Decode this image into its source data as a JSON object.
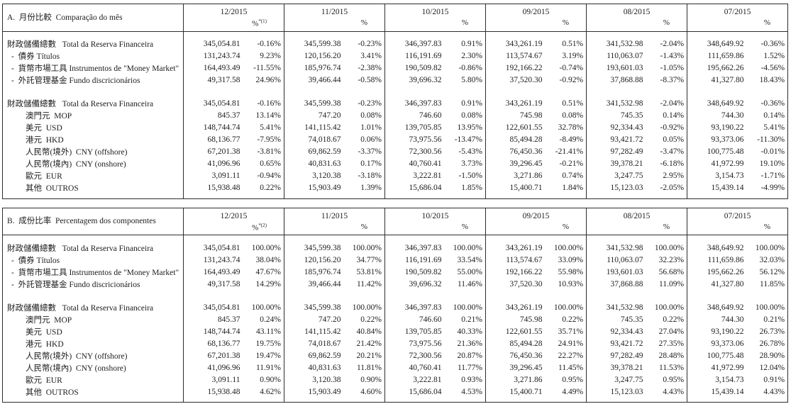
{
  "page": {
    "background": "#ffffff",
    "text_color": "#1d1d1d",
    "border_color": "#2c2c2c"
  },
  "months": [
    "12/2015",
    "11/2015",
    "10/2015",
    "09/2015",
    "08/2015",
    "07/2015"
  ],
  "pct_symbol": "%",
  "tables": [
    {
      "data_name": "month-comparison-table",
      "title": "A.  月份比較  Comparação do mês",
      "first_col_pct_note": "*(1)",
      "rows": [
        {
          "type": "data",
          "indent": 0,
          "label": "財政儲備總數   Total da Reserva Financeira",
          "cells": [
            [
              "345,054.81",
              "-0.16%"
            ],
            [
              "345,599.38",
              "-0.23%"
            ],
            [
              "346,397.83",
              "0.91%"
            ],
            [
              "343,261.19",
              "0.51%"
            ],
            [
              "341,532.98",
              "-2.04%"
            ],
            [
              "348,649.92",
              "-0.36%"
            ]
          ]
        },
        {
          "type": "data",
          "indent": 1,
          "label": "-  債券 Títulos",
          "cells": [
            [
              "131,243.74",
              "9.23%"
            ],
            [
              "120,156.20",
              "3.41%"
            ],
            [
              "116,191.69",
              "2.30%"
            ],
            [
              "113,574.67",
              "3.19%"
            ],
            [
              "110,063.07",
              "-1.43%"
            ],
            [
              "111,659.86",
              "1.52%"
            ]
          ]
        },
        {
          "type": "data",
          "indent": 1,
          "label": "-  貨幣市場工具 Instrumentos de \"Money Market\"",
          "cells": [
            [
              "164,493.49",
              "-11.55%"
            ],
            [
              "185,976.74",
              "-2.38%"
            ],
            [
              "190,509.82",
              "-0.86%"
            ],
            [
              "192,166.22",
              "-0.74%"
            ],
            [
              "193,601.03",
              "-1.05%"
            ],
            [
              "195,662.26",
              "-4.56%"
            ]
          ]
        },
        {
          "type": "data",
          "indent": 1,
          "label": "-  外託管理基金 Fundo discricionários",
          "cells": [
            [
              "49,317.58",
              "24.96%"
            ],
            [
              "39,466.44",
              "-0.58%"
            ],
            [
              "39,696.32",
              "5.80%"
            ],
            [
              "37,520.30",
              "-0.92%"
            ],
            [
              "37,868.88",
              "-8.37%"
            ],
            [
              "41,327.80",
              "18.43%"
            ]
          ]
        },
        {
          "type": "spacer"
        },
        {
          "type": "data",
          "indent": 0,
          "label": "財政儲備總數   Total da Reserva Financeira",
          "cells": [
            [
              "345,054.81",
              "-0.16%"
            ],
            [
              "345,599.38",
              "-0.23%"
            ],
            [
              "346,397.83",
              "0.91%"
            ],
            [
              "343,261.19",
              "0.51%"
            ],
            [
              "341,532.98",
              "-2.04%"
            ],
            [
              "348,649.92",
              "-0.36%"
            ]
          ]
        },
        {
          "type": "data",
          "indent": 2,
          "label": "澳門元  MOP",
          "cells": [
            [
              "845.37",
              "13.14%"
            ],
            [
              "747.20",
              "0.08%"
            ],
            [
              "746.60",
              "0.08%"
            ],
            [
              "745.98",
              "0.08%"
            ],
            [
              "745.35",
              "0.14%"
            ],
            [
              "744.30",
              "0.14%"
            ]
          ]
        },
        {
          "type": "data",
          "indent": 2,
          "label": "美元  USD",
          "cells": [
            [
              "148,744.74",
              "5.41%"
            ],
            [
              "141,115.42",
              "1.01%"
            ],
            [
              "139,705.85",
              "13.95%"
            ],
            [
              "122,601.55",
              "32.78%"
            ],
            [
              "92,334.43",
              "-0.92%"
            ],
            [
              "93,190.22",
              "5.41%"
            ]
          ]
        },
        {
          "type": "data",
          "indent": 2,
          "label": "港元  HKD",
          "cells": [
            [
              "68,136.77",
              "-7.95%"
            ],
            [
              "74,018.67",
              "0.06%"
            ],
            [
              "73,975.56",
              "-13.47%"
            ],
            [
              "85,494.28",
              "-8.49%"
            ],
            [
              "93,421.72",
              "0.05%"
            ],
            [
              "93,373.06",
              "-11.30%"
            ]
          ]
        },
        {
          "type": "data",
          "indent": 2,
          "label": "人民幣(境外)  CNY (offshore)",
          "cells": [
            [
              "67,201.38",
              "-3.81%"
            ],
            [
              "69,862.59",
              "-3.37%"
            ],
            [
              "72,300.56",
              "-5.43%"
            ],
            [
              "76,450.36",
              "-21.41%"
            ],
            [
              "97,282.49",
              "-3.47%"
            ],
            [
              "100,775.48",
              "-0.01%"
            ]
          ]
        },
        {
          "type": "data",
          "indent": 2,
          "label": "人民幣(境內)  CNY (onshore)",
          "cells": [
            [
              "41,096.96",
              "0.65%"
            ],
            [
              "40,831.63",
              "0.17%"
            ],
            [
              "40,760.41",
              "3.73%"
            ],
            [
              "39,296.45",
              "-0.21%"
            ],
            [
              "39,378.21",
              "-6.18%"
            ],
            [
              "41,972.99",
              "19.10%"
            ]
          ]
        },
        {
          "type": "data",
          "indent": 2,
          "label": "歐元  EUR",
          "cells": [
            [
              "3,091.11",
              "-0.94%"
            ],
            [
              "3,120.38",
              "-3.18%"
            ],
            [
              "3,222.81",
              "-1.50%"
            ],
            [
              "3,271.86",
              "0.74%"
            ],
            [
              "3,247.75",
              "2.95%"
            ],
            [
              "3,154.73",
              "-1.71%"
            ]
          ]
        },
        {
          "type": "data",
          "indent": 2,
          "label": "其他  OUTROS",
          "cells": [
            [
              "15,938.48",
              "0.22%"
            ],
            [
              "15,903.49",
              "1.39%"
            ],
            [
              "15,686.04",
              "1.85%"
            ],
            [
              "15,400.71",
              "1.84%"
            ],
            [
              "15,123.03",
              "-2.05%"
            ],
            [
              "15,439.14",
              "-4.99%"
            ]
          ]
        }
      ]
    },
    {
      "data_name": "component-percentage-table",
      "title": "B.  成份比率  Percentagem dos componentes",
      "first_col_pct_note": "*(2)",
      "rows": [
        {
          "type": "data",
          "indent": 0,
          "label": "財政儲備總數   Total da Reserva Financeira",
          "cells": [
            [
              "345,054.81",
              "100.00%"
            ],
            [
              "345,599.38",
              "100.00%"
            ],
            [
              "346,397.83",
              "100.00%"
            ],
            [
              "343,261.19",
              "100.00%"
            ],
            [
              "341,532.98",
              "100.00%"
            ],
            [
              "348,649.92",
              "100.00%"
            ]
          ]
        },
        {
          "type": "data",
          "indent": 1,
          "label": "-  債券 Títulos",
          "cells": [
            [
              "131,243.74",
              "38.04%"
            ],
            [
              "120,156.20",
              "34.77%"
            ],
            [
              "116,191.69",
              "33.54%"
            ],
            [
              "113,574.67",
              "33.09%"
            ],
            [
              "110,063.07",
              "32.23%"
            ],
            [
              "111,659.86",
              "32.03%"
            ]
          ]
        },
        {
          "type": "data",
          "indent": 1,
          "label": "-  貨幣市場工具 Instrumentos de \"Money Market\"",
          "cells": [
            [
              "164,493.49",
              "47.67%"
            ],
            [
              "185,976.74",
              "53.81%"
            ],
            [
              "190,509.82",
              "55.00%"
            ],
            [
              "192,166.22",
              "55.98%"
            ],
            [
              "193,601.03",
              "56.68%"
            ],
            [
              "195,662.26",
              "56.12%"
            ]
          ]
        },
        {
          "type": "data",
          "indent": 1,
          "label": "-  外託管理基金 Fundo discricionários",
          "cells": [
            [
              "49,317.58",
              "14.29%"
            ],
            [
              "39,466.44",
              "11.42%"
            ],
            [
              "39,696.32",
              "11.46%"
            ],
            [
              "37,520.30",
              "10.93%"
            ],
            [
              "37,868.88",
              "11.09%"
            ],
            [
              "41,327.80",
              "11.85%"
            ]
          ]
        },
        {
          "type": "spacer"
        },
        {
          "type": "data",
          "indent": 0,
          "label": "財政儲備總數   Total da Reserva Financeira",
          "cells": [
            [
              "345,054.81",
              "100.00%"
            ],
            [
              "345,599.38",
              "100.00%"
            ],
            [
              "346,397.83",
              "100.00%"
            ],
            [
              "343,261.19",
              "100.00%"
            ],
            [
              "341,532.98",
              "100.00%"
            ],
            [
              "348,649.92",
              "100.00%"
            ]
          ]
        },
        {
          "type": "data",
          "indent": 2,
          "label": "澳門元  MOP",
          "cells": [
            [
              "845.37",
              "0.24%"
            ],
            [
              "747.20",
              "0.22%"
            ],
            [
              "746.60",
              "0.21%"
            ],
            [
              "745.98",
              "0.22%"
            ],
            [
              "745.35",
              "0.22%"
            ],
            [
              "744.30",
              "0.21%"
            ]
          ]
        },
        {
          "type": "data",
          "indent": 2,
          "label": "美元  USD",
          "cells": [
            [
              "148,744.74",
              "43.11%"
            ],
            [
              "141,115.42",
              "40.84%"
            ],
            [
              "139,705.85",
              "40.33%"
            ],
            [
              "122,601.55",
              "35.71%"
            ],
            [
              "92,334.43",
              "27.04%"
            ],
            [
              "93,190.22",
              "26.73%"
            ]
          ]
        },
        {
          "type": "data",
          "indent": 2,
          "label": "港元  HKD",
          "cells": [
            [
              "68,136.77",
              "19.75%"
            ],
            [
              "74,018.67",
              "21.42%"
            ],
            [
              "73,975.56",
              "21.36%"
            ],
            [
              "85,494.28",
              "24.91%"
            ],
            [
              "93,421.72",
              "27.35%"
            ],
            [
              "93,373.06",
              "26.78%"
            ]
          ]
        },
        {
          "type": "data",
          "indent": 2,
          "label": "人民幣(境外)  CNY (offshore)",
          "cells": [
            [
              "67,201.38",
              "19.47%"
            ],
            [
              "69,862.59",
              "20.21%"
            ],
            [
              "72,300.56",
              "20.87%"
            ],
            [
              "76,450.36",
              "22.27%"
            ],
            [
              "97,282.49",
              "28.48%"
            ],
            [
              "100,775.48",
              "28.90%"
            ]
          ]
        },
        {
          "type": "data",
          "indent": 2,
          "label": "人民幣(境內)  CNY (onshore)",
          "cells": [
            [
              "41,096.96",
              "11.91%"
            ],
            [
              "40,831.63",
              "11.81%"
            ],
            [
              "40,760.41",
              "11.77%"
            ],
            [
              "39,296.45",
              "11.45%"
            ],
            [
              "39,378.21",
              "11.53%"
            ],
            [
              "41,972.99",
              "12.04%"
            ]
          ]
        },
        {
          "type": "data",
          "indent": 2,
          "label": "歐元  EUR",
          "cells": [
            [
              "3,091.11",
              "0.90%"
            ],
            [
              "3,120.38",
              "0.90%"
            ],
            [
              "3,222.81",
              "0.93%"
            ],
            [
              "3,271.86",
              "0.95%"
            ],
            [
              "3,247.75",
              "0.95%"
            ],
            [
              "3,154.73",
              "0.91%"
            ]
          ]
        },
        {
          "type": "data",
          "indent": 2,
          "label": "其他  OUTROS",
          "cells": [
            [
              "15,938.48",
              "4.62%"
            ],
            [
              "15,903.49",
              "4.60%"
            ],
            [
              "15,686.04",
              "4.53%"
            ],
            [
              "15,400.71",
              "4.49%"
            ],
            [
              "15,123.03",
              "4.43%"
            ],
            [
              "15,439.14",
              "4.43%"
            ]
          ]
        }
      ]
    }
  ]
}
